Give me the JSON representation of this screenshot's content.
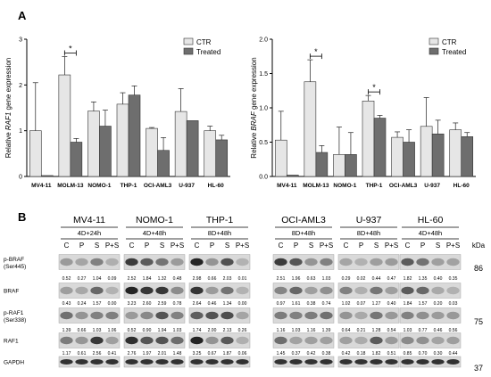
{
  "figure": {
    "panel_a_label": "A",
    "panel_b_label": "B"
  },
  "colors": {
    "ctr_bar": "#e6e6e6",
    "treated_bar": "#6e6e6e",
    "edge": "#333333",
    "gel_band": "#1a1a1a",
    "gel_bg": "#d9d9d9"
  },
  "chart_data": [
    {
      "type": "bar",
      "ylabel_prefix": "Relative ",
      "ylabel_gene": "RAF1",
      "ylabel_suffix": " gene expression",
      "ylim": [
        0,
        3
      ],
      "yticks": [
        "0",
        "1",
        "2",
        "3"
      ],
      "categories": [
        "MV4-11",
        "MOLM-13",
        "NOMO-1",
        "THP-1",
        "OCI-AML3",
        "U-937",
        "HL-60"
      ],
      "legend": "top-right",
      "series": [
        {
          "name": "CTR",
          "values": [
            1.0,
            2.22,
            1.43,
            1.58,
            1.05,
            1.42,
            1.0
          ],
          "errors": [
            1.05,
            0.4,
            0.2,
            0.25,
            0.02,
            0.5,
            0.1
          ]
        },
        {
          "name": "Treated",
          "values": [
            0.02,
            0.75,
            1.1,
            1.78,
            0.57,
            1.22,
            0.8
          ],
          "errors": [
            0.0,
            0.08,
            0.35,
            0.2,
            0.28,
            0.0,
            0.1
          ]
        }
      ],
      "significance": [
        {
          "category": "MOLM-13",
          "label": "*"
        }
      ]
    },
    {
      "type": "bar",
      "ylabel_prefix": "Relative ",
      "ylabel_gene": "BRAF",
      "ylabel_suffix": " gene expression",
      "ylim": [
        0,
        2
      ],
      "yticks": [
        "0.0",
        "0.5",
        "1.0",
        "1.5",
        "2.0"
      ],
      "categories": [
        "MV4-11",
        "MOLM-13",
        "NOMO-1",
        "THP-1",
        "OCI-AML3",
        "U-937",
        "HL-60"
      ],
      "legend": "top-right",
      "series": [
        {
          "name": "CTR",
          "values": [
            0.53,
            1.38,
            0.32,
            1.1,
            0.57,
            0.73,
            0.68
          ],
          "errors": [
            0.42,
            0.32,
            0.4,
            0.08,
            0.08,
            0.42,
            0.1
          ]
        },
        {
          "name": "Treated",
          "values": [
            0.02,
            0.35,
            0.32,
            0.85,
            0.5,
            0.62,
            0.58
          ],
          "errors": [
            0.0,
            0.1,
            0.32,
            0.04,
            0.18,
            0.2,
            0.06
          ]
        }
      ],
      "significance": [
        {
          "category": "MOLM-13",
          "label": "*"
        },
        {
          "category": "THP-1",
          "label": "*"
        }
      ]
    }
  ],
  "blots": {
    "kda_header": "kDa",
    "lanes": [
      "C",
      "P",
      "S",
      "P+S"
    ],
    "rows": [
      {
        "label": [
          "p-BRAF",
          "(Ser445)"
        ],
        "kda": "86"
      },
      {
        "label": [
          "BRAF"
        ],
        "kda": ""
      },
      {
        "label": [
          "p-RAF1",
          "(Ser338)"
        ],
        "kda": "75"
      },
      {
        "label": [
          "RAF1"
        ],
        "kda": ""
      },
      {
        "label": [
          "GAPDH"
        ],
        "kda": "37"
      }
    ],
    "cell_lines": [
      {
        "name": "MV4-11",
        "condition": "4D+24h",
        "values": [
          [
            "0.52",
            "0.27",
            "1.04",
            "0.09"
          ],
          [
            "0.43",
            "0.24",
            "1.57",
            "0.00"
          ],
          [
            "1.39",
            "0.66",
            "1.03",
            "1.06"
          ],
          [
            "1.17",
            "0.61",
            "2.56",
            "0.41"
          ]
        ]
      },
      {
        "name": "NOMO-1",
        "condition": "4D+48h",
        "values": [
          [
            "2.52",
            "1.84",
            "1.32",
            "0.48"
          ],
          [
            "3.23",
            "2.60",
            "2.59",
            "0.78"
          ],
          [
            "0.52",
            "0.90",
            "1.94",
            "1.03"
          ],
          [
            "2.76",
            "1.97",
            "2.01",
            "1.48"
          ]
        ]
      },
      {
        "name": "THP-1",
        "condition": "8D+48h",
        "values": [
          [
            "2.98",
            "0.66",
            "2.03",
            "0.01"
          ],
          [
            "2.64",
            "0.46",
            "1.34",
            "0.00"
          ],
          [
            "1.74",
            "2.00",
            "2.13",
            "0.26"
          ],
          [
            "3.25",
            "0.67",
            "1.87",
            "0.06"
          ]
        ]
      },
      {
        "name": "OCI-AML3",
        "condition": "8D+48h",
        "values": [
          [
            "2.51",
            "1.96",
            "0.63",
            "1.03"
          ],
          [
            "0.97",
            "1.61",
            "0.38",
            "0.74"
          ],
          [
            "1.16",
            "1.03",
            "1.16",
            "1.39"
          ],
          [
            "1.45",
            "0.37",
            "0.42",
            "0.38"
          ]
        ]
      },
      {
        "name": "U-937",
        "condition": "8D+48h",
        "values": [
          [
            "0.29",
            "0.02",
            "0.44",
            "0.47"
          ],
          [
            "1.02",
            "0.07",
            "1.27",
            "0.40"
          ],
          [
            "0.64",
            "0.21",
            "1.28",
            "0.54"
          ],
          [
            "0.42",
            "0.18",
            "1.82",
            "0.51"
          ]
        ]
      },
      {
        "name": "HL-60",
        "condition": "4D+48h",
        "values": [
          [
            "1.82",
            "1.35",
            "0.40",
            "0.35"
          ],
          [
            "1.84",
            "1.57",
            "0.20",
            "0.03"
          ],
          [
            "1.03",
            "0.77",
            "0.46",
            "0.56"
          ],
          [
            "0.85",
            "0.70",
            "0.30",
            "0.44"
          ]
        ]
      }
    ]
  }
}
